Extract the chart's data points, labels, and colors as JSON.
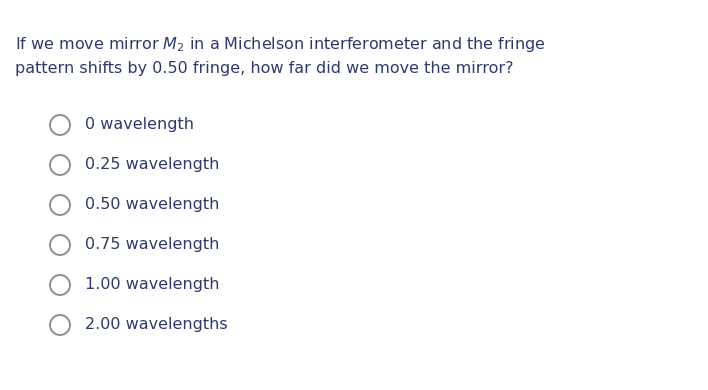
{
  "background_color": "#ffffff",
  "question_line1": "If we move mirror $M_2$ in a Michelson interferometer and the fringe",
  "question_line2": "pattern shifts by 0.50 fringe, how far did we move the mirror?",
  "options": [
    "0 wavelength",
    "0.25 wavelength",
    "0.50 wavelength",
    "0.75 wavelength",
    "1.00 wavelength",
    "2.00 wavelengths"
  ],
  "question_color": "#2d3a6b",
  "option_color": "#2d3a6b",
  "question_fontsize": 11.5,
  "option_fontsize": 11.5,
  "circle_color": "#888888",
  "fig_width": 7.08,
  "fig_height": 3.9,
  "dpi": 100
}
